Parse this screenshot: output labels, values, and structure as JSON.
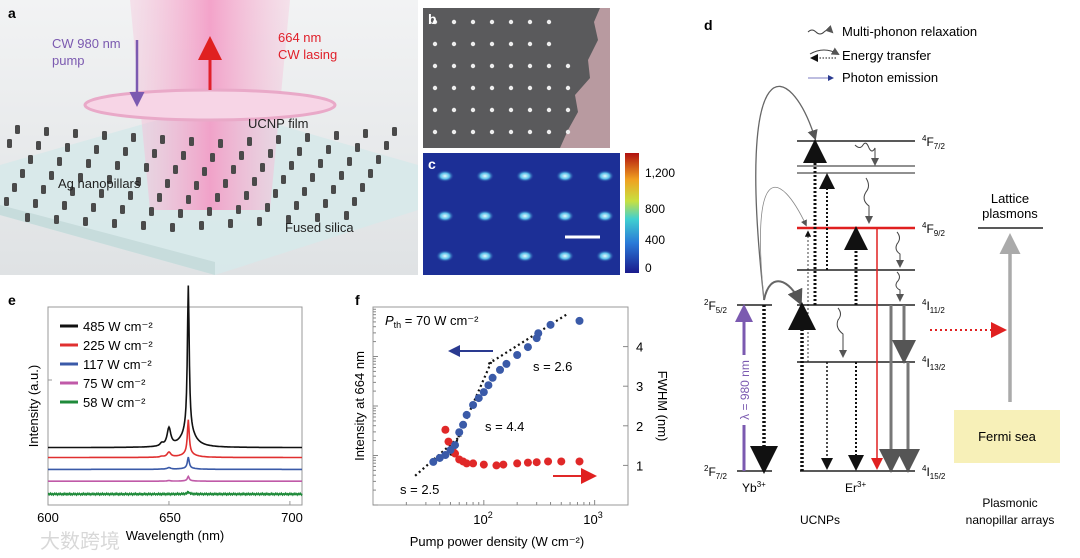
{
  "panel_labels": {
    "a": "a",
    "b": "b",
    "c": "c",
    "d": "d",
    "e": "e",
    "f": "f"
  },
  "panel_a": {
    "pump": [
      "CW 980 nm",
      "pump"
    ],
    "lasing": [
      "664 nm",
      "CW lasing"
    ],
    "film": "UCNP film",
    "pillars": "Ag nanopillars",
    "substrate": "Fused silica",
    "colors": {
      "pump": "#7b5ab0",
      "lasing": "#e0202a"
    }
  },
  "panel_c": {
    "colorbar_ticks": [
      "1,200",
      "800",
      "400",
      "0"
    ]
  },
  "panel_d": {
    "legend": [
      "Multi-phonon relaxation",
      "Energy transfer",
      "Photon emission"
    ],
    "er_levels": [
      {
        "sup": "4",
        "main": "F",
        "sub": "7/2"
      },
      {
        "sup": "4",
        "main": "F",
        "sub": "9/2"
      },
      {
        "sup": "4",
        "main": "I",
        "sub": "11/2"
      },
      {
        "sup": "4",
        "main": "I",
        "sub": "13/2"
      },
      {
        "sup": "4",
        "main": "I",
        "sub": "15/2"
      }
    ],
    "yb_levels": [
      {
        "sup": "2",
        "main": "F",
        "sub": "5/2"
      },
      {
        "sup": "2",
        "main": "F",
        "sub": "7/2"
      }
    ],
    "excitation": "λ = 980 nm",
    "yb_ion": {
      "main": "Yb",
      "sup": "3+"
    },
    "er_ion": {
      "main": "Er",
      "sup": "3+"
    },
    "ucnps": "UCNPs",
    "lattice": [
      "Lattice",
      "plasmons"
    ],
    "fermi": "Fermi sea",
    "arrays": [
      "Plasmonic",
      "nanopillar arrays"
    ]
  },
  "watermark": "大数跨境",
  "chart_data": [
    {
      "type": "line",
      "panel": "e",
      "xlabel": "Wavelength (nm)",
      "ylabel": "Intensity (a.u.)",
      "xlim": [
        600,
        705
      ],
      "ylim": [
        0,
        10
      ],
      "xticks": [
        "600",
        "650",
        "700"
      ],
      "peak_wavelength": 658,
      "side_peak_wavelength": 650,
      "legend_position": "top-left",
      "series": [
        {
          "name": "485 W cm⁻²",
          "color": "#111111",
          "offset": 2.9,
          "peak": 7.3,
          "side": 0.9
        },
        {
          "name": "225 W cm⁻²",
          "color": "#e03030",
          "offset": 2.4,
          "peak": 1.7,
          "side": 0.25
        },
        {
          "name": "117 W cm⁻²",
          "color": "#3a5aa8",
          "offset": 1.8,
          "peak": 0.55,
          "side": 0.08
        },
        {
          "name": "75 W cm⁻²",
          "color": "#c05aa8",
          "offset": 1.2,
          "peak": 0.22,
          "side": 0.03
        },
        {
          "name": "58 W cm⁻²",
          "color": "#1f8a3a",
          "offset": 0.55,
          "peak": 0.1,
          "side": 0.0
        }
      ]
    },
    {
      "type": "scatter",
      "panel": "f",
      "xlabel": "Pump power density (W cm⁻²)",
      "ylabel_left": "Intensity at 664 nm",
      "ylabel_right": "FWHM (nm)",
      "xscale": "log",
      "xlim": [
        10,
        2000
      ],
      "xticks": [
        {
          "value": 100,
          "base": "10",
          "exp": "2"
        },
        {
          "value": 1000,
          "base": "10",
          "exp": "3"
        }
      ],
      "ylim_left_log10": [
        0,
        4
      ],
      "ylim_right": [
        0,
        5
      ],
      "yticks_right": [
        "1",
        "2",
        "3",
        "4"
      ],
      "threshold": {
        "prefix": "P",
        "sub": "th",
        "rest": " = 70 W cm⁻²"
      },
      "annotations": [
        "s = 2.6",
        "s = 4.4",
        "s = 2.5"
      ],
      "intensity_series": {
        "name": "Intensity",
        "color": "#3a5aa8",
        "axis": "left",
        "x": [
          35,
          40,
          45,
          50,
          55,
          60,
          65,
          70,
          80,
          90,
          100,
          110,
          120,
          140,
          160,
          200,
          250,
          300,
          310,
          400,
          730
        ],
        "log10_y": [
          0.87,
          0.95,
          1.01,
          1.11,
          1.21,
          1.47,
          1.62,
          1.82,
          2.02,
          2.16,
          2.28,
          2.42,
          2.57,
          2.73,
          2.85,
          3.03,
          3.19,
          3.37,
          3.47,
          3.64,
          3.72
        ]
      },
      "fwhm_series": {
        "name": "FWHM",
        "color": "#e02828",
        "axis": "right",
        "x": [
          45,
          48,
          52,
          55,
          60,
          65,
          70,
          80,
          100,
          130,
          150,
          200,
          250,
          300,
          380,
          500,
          730
        ],
        "y": [
          1.9,
          1.6,
          1.4,
          1.3,
          1.15,
          1.1,
          1.05,
          1.05,
          1.02,
          1.0,
          1.02,
          1.05,
          1.07,
          1.08,
          1.1,
          1.1,
          1.1
        ]
      },
      "fits": [
        {
          "slope": "2.5",
          "x": [
            24,
            62
          ],
          "log10_y": [
            0.59,
            1.4
          ]
        },
        {
          "slope": "4.4",
          "x": [
            50,
            120
          ],
          "log10_y": [
            1.0,
            2.95
          ]
        },
        {
          "slope": "2.6",
          "x": [
            110,
            560
          ],
          "log10_y": [
            2.85,
            3.85
          ]
        }
      ]
    }
  ]
}
